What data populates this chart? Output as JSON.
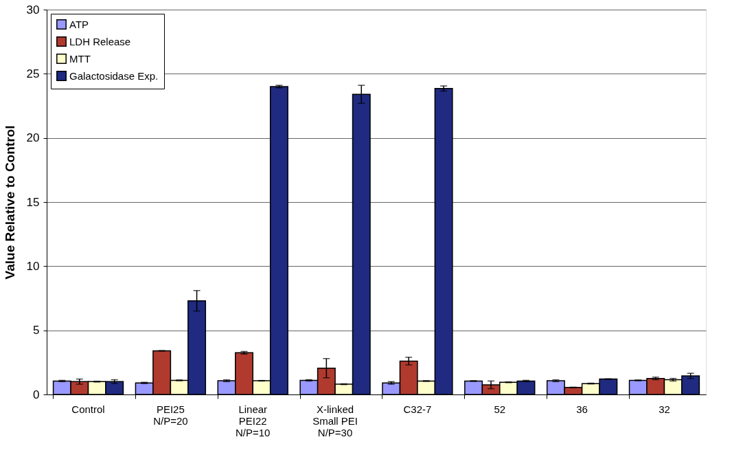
{
  "chart_data": {
    "type": "bar",
    "ylabel": "Value Relative to Control",
    "categories": [
      "Control",
      "PEI25\nN/P=20",
      "Linear\nPEI22\nN/P=10",
      "X-linked\nSmall PEI\nN/P=30",
      "C32-7",
      "52",
      "36",
      "32"
    ],
    "series": [
      {
        "name": "ATP",
        "color": "#9999ff",
        "values": [
          1.05,
          0.9,
          1.07,
          1.1,
          0.9,
          1.05,
          1.07,
          1.1
        ],
        "errors": [
          0.05,
          0.05,
          0.07,
          0.05,
          0.1,
          0.03,
          0.07,
          0.03
        ]
      },
      {
        "name": "LDH Release",
        "color": "#b03a2e",
        "values": [
          1.0,
          3.4,
          3.25,
          2.05,
          2.6,
          0.75,
          0.55,
          1.25
        ],
        "errors": [
          0.2,
          0.02,
          0.1,
          0.75,
          0.3,
          0.3,
          0.02,
          0.1
        ]
      },
      {
        "name": "MTT",
        "color": "#ffffcc",
        "values": [
          1.0,
          1.1,
          1.07,
          0.8,
          1.05,
          0.95,
          0.85,
          1.15
        ],
        "errors": [
          0.03,
          0.03,
          0.02,
          0.03,
          0.03,
          0.03,
          0.03,
          0.1
        ]
      },
      {
        "name": "Galactosidase Exp.",
        "color": "#1f2a80",
        "values": [
          1.0,
          7.3,
          24.0,
          23.4,
          23.85,
          1.05,
          1.2,
          1.45
        ],
        "errors": [
          0.15,
          0.8,
          0.1,
          0.7,
          0.2,
          0.05,
          0.02,
          0.2
        ]
      }
    ],
    "ylim": [
      0,
      30
    ],
    "yticks": [
      0,
      5,
      10,
      15,
      20,
      25,
      30
    ],
    "grid": "y",
    "legend": "top left"
  }
}
